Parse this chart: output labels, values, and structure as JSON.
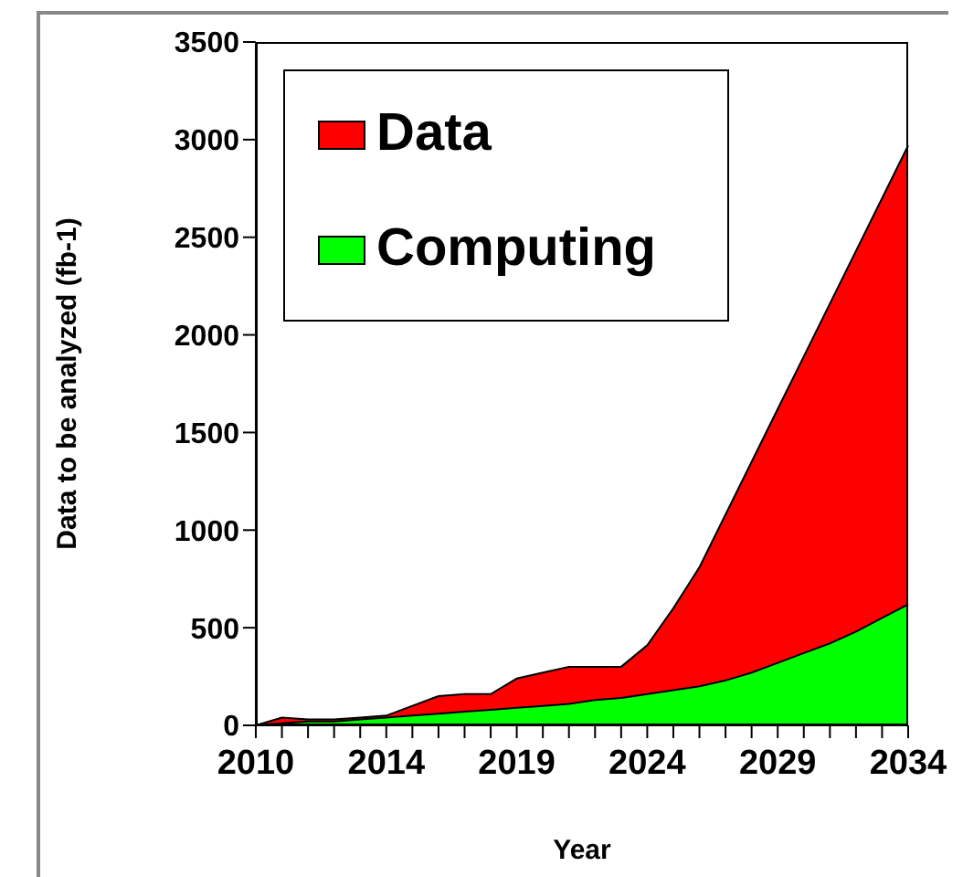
{
  "chart_data": {
    "type": "area",
    "xlabel": "Year",
    "ylabel": "Data to be analyzed (fb-1)",
    "categories": [
      "2010",
      null,
      null,
      null,
      null,
      "2014",
      null,
      null,
      null,
      null,
      "2019",
      null,
      null,
      null,
      null,
      "2024",
      null,
      null,
      null,
      null,
      "2029",
      null,
      null,
      null,
      null,
      "2034"
    ],
    "series": [
      {
        "name": "Data",
        "color": "#ff0000",
        "values": [
          0,
          40,
          30,
          30,
          40,
          50,
          100,
          150,
          160,
          160,
          240,
          270,
          300,
          300,
          300,
          410,
          600,
          810,
          1080,
          1350,
          1620,
          1890,
          2160,
          2430,
          2700,
          2970
        ]
      },
      {
        "name": "Computing",
        "color": "#00ff00",
        "values": [
          0,
          10,
          20,
          20,
          30,
          40,
          50,
          60,
          70,
          80,
          90,
          100,
          110,
          130,
          140,
          160,
          180,
          200,
          230,
          270,
          320,
          370,
          420,
          480,
          550,
          620
        ]
      }
    ],
    "ylim": [
      0,
      3500
    ],
    "yticks": [
      0,
      500,
      1000,
      1500,
      2000,
      2500,
      3000,
      3500
    ],
    "grid": false,
    "legend": "top left"
  }
}
